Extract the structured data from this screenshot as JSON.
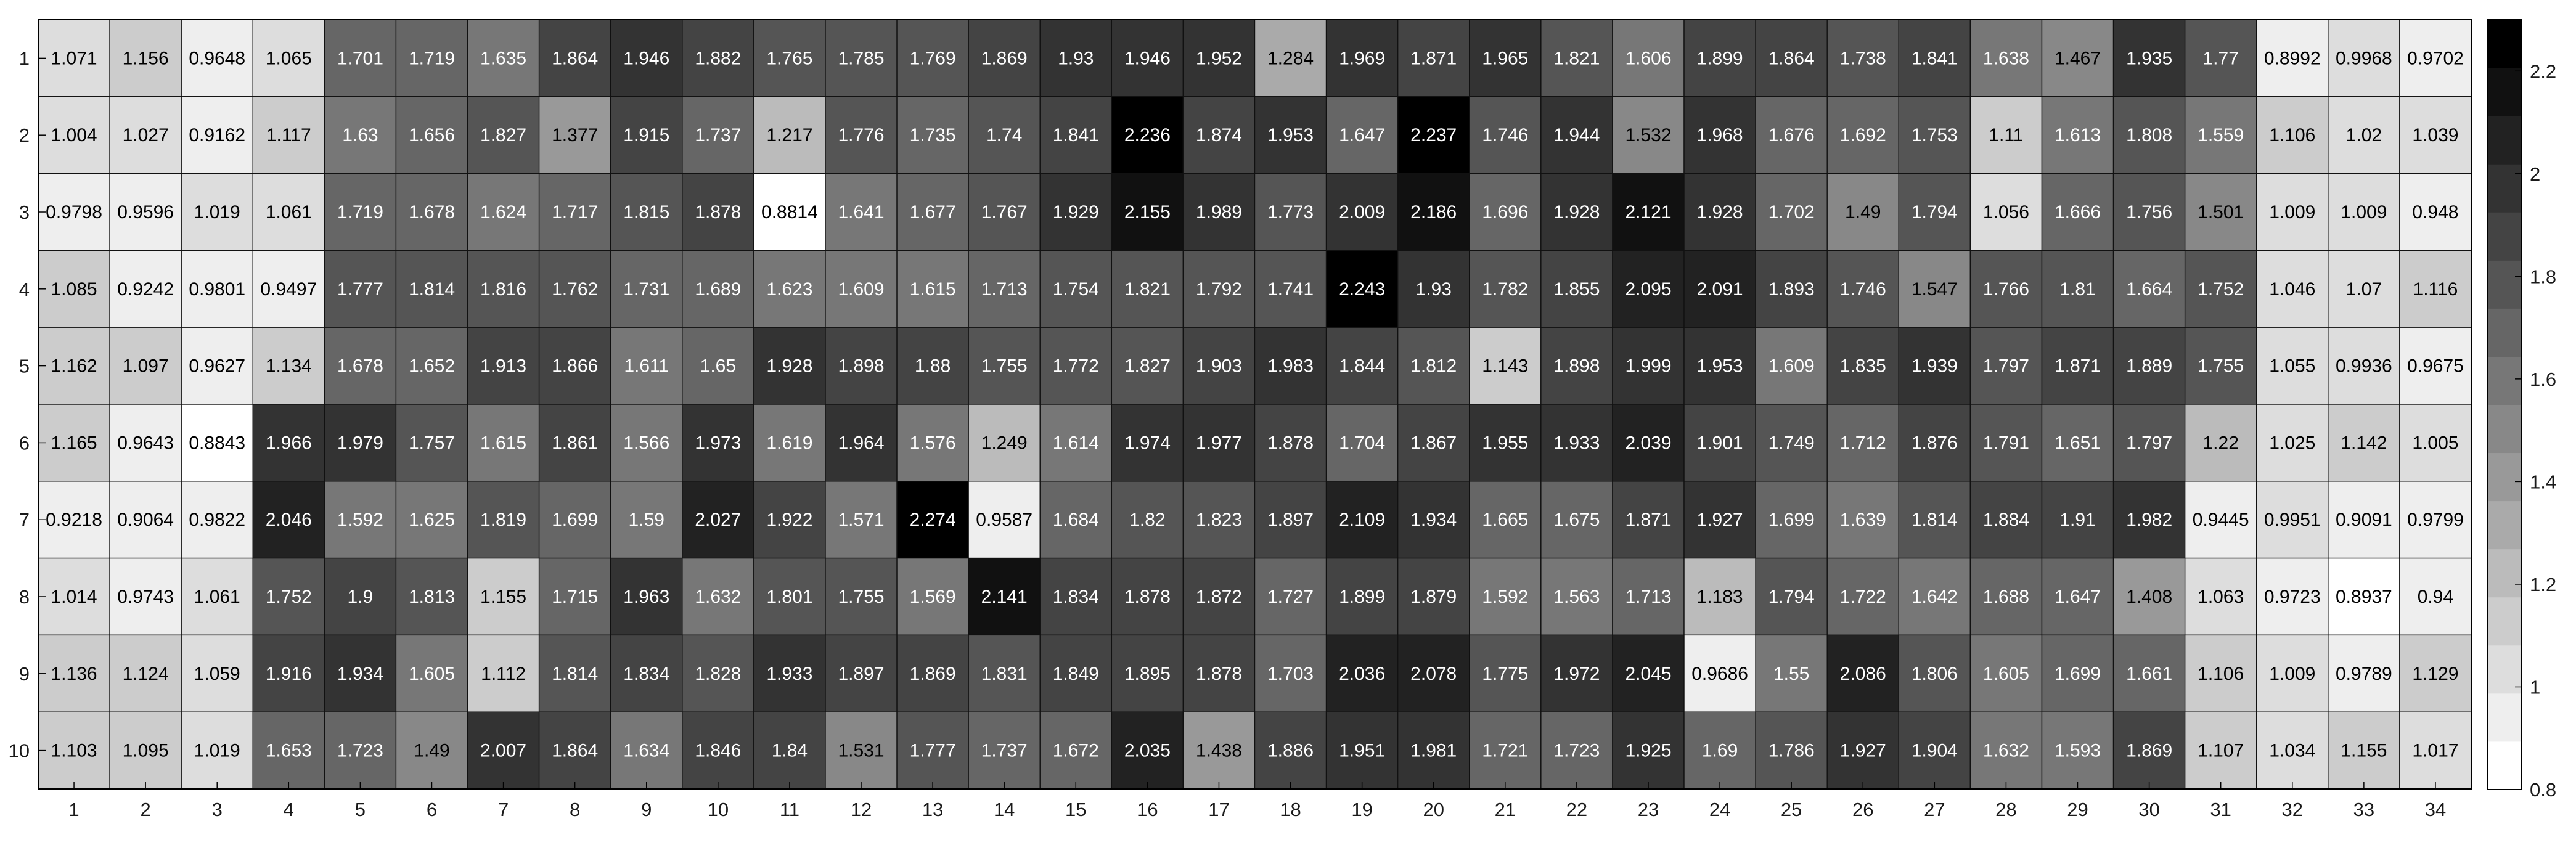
{
  "chart_data": {
    "type": "heatmap",
    "colormap": "gray-reversed",
    "rows": [
      1,
      2,
      3,
      4,
      5,
      6,
      7,
      8,
      9,
      10
    ],
    "cols": [
      1,
      2,
      3,
      4,
      5,
      6,
      7,
      8,
      9,
      10,
      11,
      12,
      13,
      14,
      15,
      16,
      17,
      18,
      19,
      20,
      21,
      22,
      23,
      24,
      25,
      26,
      27,
      28,
      29,
      30,
      31,
      32,
      33,
      34
    ],
    "values": [
      [
        "1.071",
        "1.156",
        "0.9648",
        "1.065",
        "1.701",
        "1.719",
        "1.635",
        "1.864",
        "1.946",
        "1.882",
        "1.765",
        "1.785",
        "1.769",
        "1.869",
        "1.93",
        "1.946",
        "1.952",
        "1.284",
        "1.969",
        "1.871",
        "1.965",
        "1.821",
        "1.606",
        "1.899",
        "1.864",
        "1.738",
        "1.841",
        "1.638",
        "1.467",
        "1.935",
        "1.77",
        "0.8992",
        "0.9968",
        "0.9702"
      ],
      [
        "1.004",
        "1.027",
        "0.9162",
        "1.117",
        "1.63",
        "1.656",
        "1.827",
        "1.377",
        "1.915",
        "1.737",
        "1.217",
        "1.776",
        "1.735",
        "1.74",
        "1.841",
        "2.236",
        "1.874",
        "1.953",
        "1.647",
        "2.237",
        "1.746",
        "1.944",
        "1.532",
        "1.968",
        "1.676",
        "1.692",
        "1.753",
        "1.11",
        "1.613",
        "1.808",
        "1.559",
        "1.106",
        "1.02",
        "1.039"
      ],
      [
        "0.9798",
        "0.9596",
        "1.019",
        "1.061",
        "1.719",
        "1.678",
        "1.624",
        "1.717",
        "1.815",
        "1.878",
        "0.8814",
        "1.641",
        "1.677",
        "1.767",
        "1.929",
        "2.155",
        "1.989",
        "1.773",
        "2.009",
        "2.186",
        "1.696",
        "1.928",
        "2.121",
        "1.928",
        "1.702",
        "1.49",
        "1.794",
        "1.056",
        "1.666",
        "1.756",
        "1.501",
        "1.009",
        "1.009",
        "0.948"
      ],
      [
        "1.085",
        "0.9242",
        "0.9801",
        "0.9497",
        "1.777",
        "1.814",
        "1.816",
        "1.762",
        "1.731",
        "1.689",
        "1.623",
        "1.609",
        "1.615",
        "1.713",
        "1.754",
        "1.821",
        "1.792",
        "1.741",
        "2.243",
        "1.93",
        "1.782",
        "1.855",
        "2.095",
        "2.091",
        "1.893",
        "1.746",
        "1.547",
        "1.766",
        "1.81",
        "1.664",
        "1.752",
        "1.046",
        "1.07",
        "1.116"
      ],
      [
        "1.162",
        "1.097",
        "0.9627",
        "1.134",
        "1.678",
        "1.652",
        "1.913",
        "1.866",
        "1.611",
        "1.65",
        "1.928",
        "1.898",
        "1.88",
        "1.755",
        "1.772",
        "1.827",
        "1.903",
        "1.983",
        "1.844",
        "1.812",
        "1.143",
        "1.898",
        "1.999",
        "1.953",
        "1.609",
        "1.835",
        "1.939",
        "1.797",
        "1.871",
        "1.889",
        "1.755",
        "1.055",
        "0.9936",
        "0.9675"
      ],
      [
        "1.165",
        "0.9643",
        "0.8843",
        "1.966",
        "1.979",
        "1.757",
        "1.615",
        "1.861",
        "1.566",
        "1.973",
        "1.619",
        "1.964",
        "1.576",
        "1.249",
        "1.614",
        "1.974",
        "1.977",
        "1.878",
        "1.704",
        "1.867",
        "1.955",
        "1.933",
        "2.039",
        "1.901",
        "1.749",
        "1.712",
        "1.876",
        "1.791",
        "1.651",
        "1.797",
        "1.22",
        "1.025",
        "1.142",
        "1.005"
      ],
      [
        "0.9218",
        "0.9064",
        "0.9822",
        "2.046",
        "1.592",
        "1.625",
        "1.819",
        "1.699",
        "1.59",
        "2.027",
        "1.922",
        "1.571",
        "2.274",
        "0.9587",
        "1.684",
        "1.82",
        "1.823",
        "1.897",
        "2.109",
        "1.934",
        "1.665",
        "1.675",
        "1.871",
        "1.927",
        "1.699",
        "1.639",
        "1.814",
        "1.884",
        "1.91",
        "1.982",
        "0.9445",
        "0.9951",
        "0.9091",
        "0.9799"
      ],
      [
        "1.014",
        "0.9743",
        "1.061",
        "1.752",
        "1.9",
        "1.813",
        "1.155",
        "1.715",
        "1.963",
        "1.632",
        "1.801",
        "1.755",
        "1.569",
        "2.141",
        "1.834",
        "1.878",
        "1.872",
        "1.727",
        "1.899",
        "1.879",
        "1.592",
        "1.563",
        "1.713",
        "1.183",
        "1.794",
        "1.722",
        "1.642",
        "1.688",
        "1.647",
        "1.408",
        "1.063",
        "0.9723",
        "0.8937",
        "0.94"
      ],
      [
        "1.136",
        "1.124",
        "1.059",
        "1.916",
        "1.934",
        "1.605",
        "1.112",
        "1.814",
        "1.834",
        "1.828",
        "1.933",
        "1.897",
        "1.869",
        "1.831",
        "1.849",
        "1.895",
        "1.878",
        "1.703",
        "2.036",
        "2.078",
        "1.775",
        "1.972",
        "2.045",
        "0.9686",
        "1.55",
        "2.086",
        "1.806",
        "1.605",
        "1.699",
        "1.661",
        "1.106",
        "1.009",
        "0.9789",
        "1.129"
      ],
      [
        "1.103",
        "1.095",
        "1.019",
        "1.653",
        "1.723",
        "1.49",
        "2.007",
        "1.864",
        "1.634",
        "1.846",
        "1.84",
        "1.531",
        "1.777",
        "1.737",
        "1.672",
        "2.035",
        "1.438",
        "1.886",
        "1.951",
        "1.981",
        "1.721",
        "1.723",
        "1.925",
        "1.69",
        "1.786",
        "1.927",
        "1.904",
        "1.632",
        "1.593",
        "1.869",
        "1.107",
        "1.034",
        "1.155",
        "1.017"
      ]
    ],
    "color_range": [
      0.8,
      2.3
    ],
    "colorbar": {
      "ticks": [
        "0.8",
        "1",
        "1.2",
        "1.4",
        "1.6",
        "1.8",
        "2",
        "2.2"
      ],
      "levels": 16
    },
    "title": "",
    "xlabel": "",
    "ylabel": ""
  }
}
